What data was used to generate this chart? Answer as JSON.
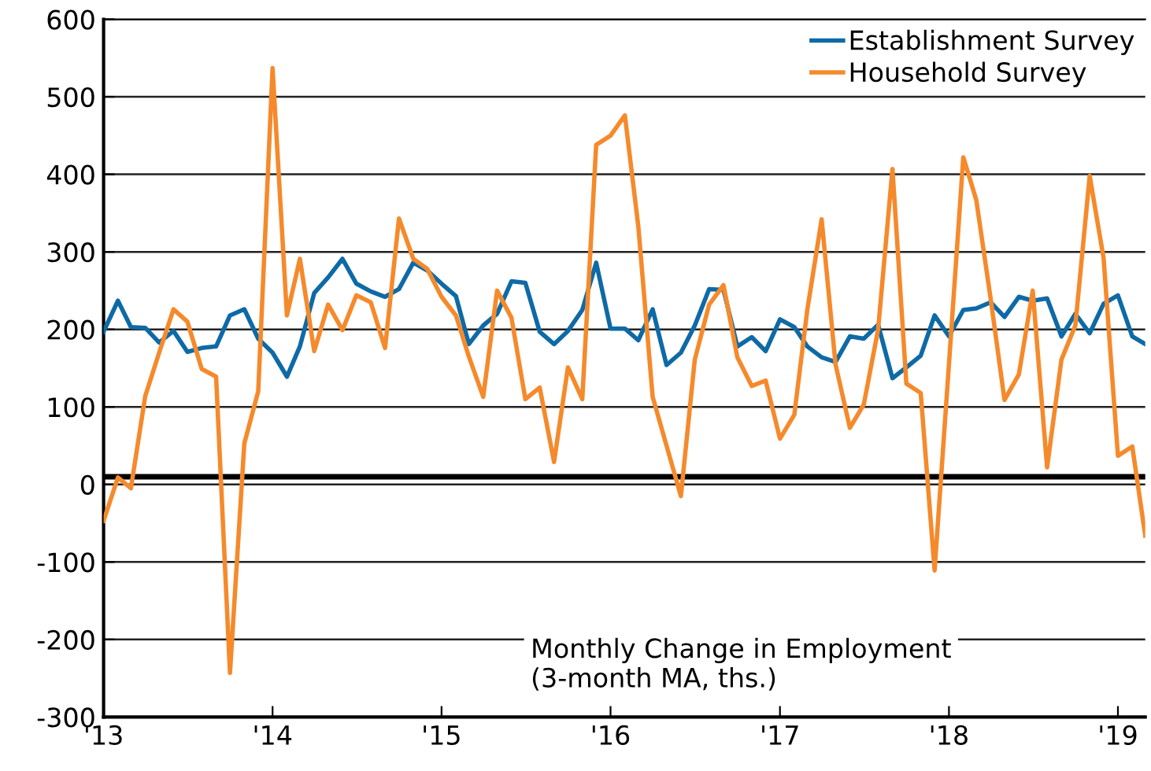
{
  "chart_data": {
    "type": "line",
    "x": [
      "2013-01",
      "2013-02",
      "2013-03",
      "2013-04",
      "2013-05",
      "2013-06",
      "2013-07",
      "2013-08",
      "2013-09",
      "2013-10",
      "2013-11",
      "2013-12",
      "2014-01",
      "2014-02",
      "2014-03",
      "2014-04",
      "2014-05",
      "2014-06",
      "2014-07",
      "2014-08",
      "2014-09",
      "2014-10",
      "2014-11",
      "2014-12",
      "2015-01",
      "2015-02",
      "2015-03",
      "2015-04",
      "2015-05",
      "2015-06",
      "2015-07",
      "2015-08",
      "2015-09",
      "2015-10",
      "2015-11",
      "2015-12",
      "2016-01",
      "2016-02",
      "2016-03",
      "2016-04",
      "2016-05",
      "2016-06",
      "2016-07",
      "2016-08",
      "2016-09",
      "2016-10",
      "2016-11",
      "2016-12",
      "2017-01",
      "2017-02",
      "2017-03",
      "2017-04",
      "2017-05",
      "2017-06",
      "2017-07",
      "2017-08",
      "2017-09",
      "2017-10",
      "2017-11",
      "2017-12",
      "2018-01",
      "2018-02",
      "2018-03",
      "2018-04",
      "2018-05",
      "2018-06",
      "2018-07",
      "2018-08",
      "2018-09",
      "2018-10",
      "2018-11",
      "2018-12",
      "2019-01",
      "2019-02",
      "2019-03"
    ],
    "series": [
      {
        "name": "Establishment Survey",
        "color": "#0e6aa6",
        "values": [
          197,
          237,
          203,
          202,
          183,
          198,
          171,
          176,
          178,
          218,
          226,
          188,
          170,
          139,
          178,
          247,
          267,
          291,
          259,
          249,
          242,
          252,
          286,
          276,
          259,
          243,
          181,
          205,
          220,
          262,
          260,
          197,
          181,
          198,
          225,
          286,
          201,
          201,
          186,
          226,
          154,
          170,
          205,
          252,
          251,
          178,
          190,
          172,
          213,
          203,
          178,
          164,
          158,
          191,
          188,
          206,
          137,
          151,
          166,
          218,
          191,
          225,
          227,
          235,
          216,
          242,
          237,
          240,
          191,
          220,
          195,
          233,
          244,
          191,
          181
        ]
      },
      {
        "name": "Household Survey",
        "color": "#f58a2c",
        "values": [
          -47,
          9,
          -5,
          114,
          170,
          226,
          210,
          149,
          139,
          -243,
          53,
          120,
          537,
          218,
          291,
          172,
          232,
          199,
          244,
          235,
          176,
          343,
          291,
          278,
          242,
          218,
          165,
          113,
          250,
          215,
          110,
          125,
          29,
          151,
          110,
          438,
          450,
          476,
          333,
          113,
          50,
          -15,
          161,
          232,
          257,
          164,
          127,
          134,
          59,
          90,
          225,
          342,
          155,
          73,
          103,
          200,
          407,
          130,
          118,
          -111,
          155,
          422,
          367,
          240,
          109,
          142,
          250,
          22,
          161,
          205,
          398,
          292,
          37,
          49,
          -66
        ]
      }
    ],
    "xlim": [
      "2013-01",
      "2019-03"
    ],
    "xticks": [
      {
        "value": "2013-01",
        "label": "'13"
      },
      {
        "value": "2014-01",
        "label": "'14"
      },
      {
        "value": "2015-01",
        "label": "'15"
      },
      {
        "value": "2016-01",
        "label": "'16"
      },
      {
        "value": "2017-01",
        "label": "'17"
      },
      {
        "value": "2018-01",
        "label": "'18"
      },
      {
        "value": "2019-01",
        "label": "'19"
      }
    ],
    "ylim": [
      -300,
      600
    ],
    "yticks": [
      -300,
      -200,
      -100,
      0,
      100,
      200,
      300,
      400,
      500,
      600
    ],
    "ref_lines": [
      {
        "axis": "y",
        "value": 10,
        "color": "#000000"
      }
    ],
    "annotations": [
      "Monthly Change in Employment\n(3-month MA, ths.)"
    ],
    "grid": "y",
    "legend": "top right",
    "marker": "none",
    "line_style": "solid"
  }
}
